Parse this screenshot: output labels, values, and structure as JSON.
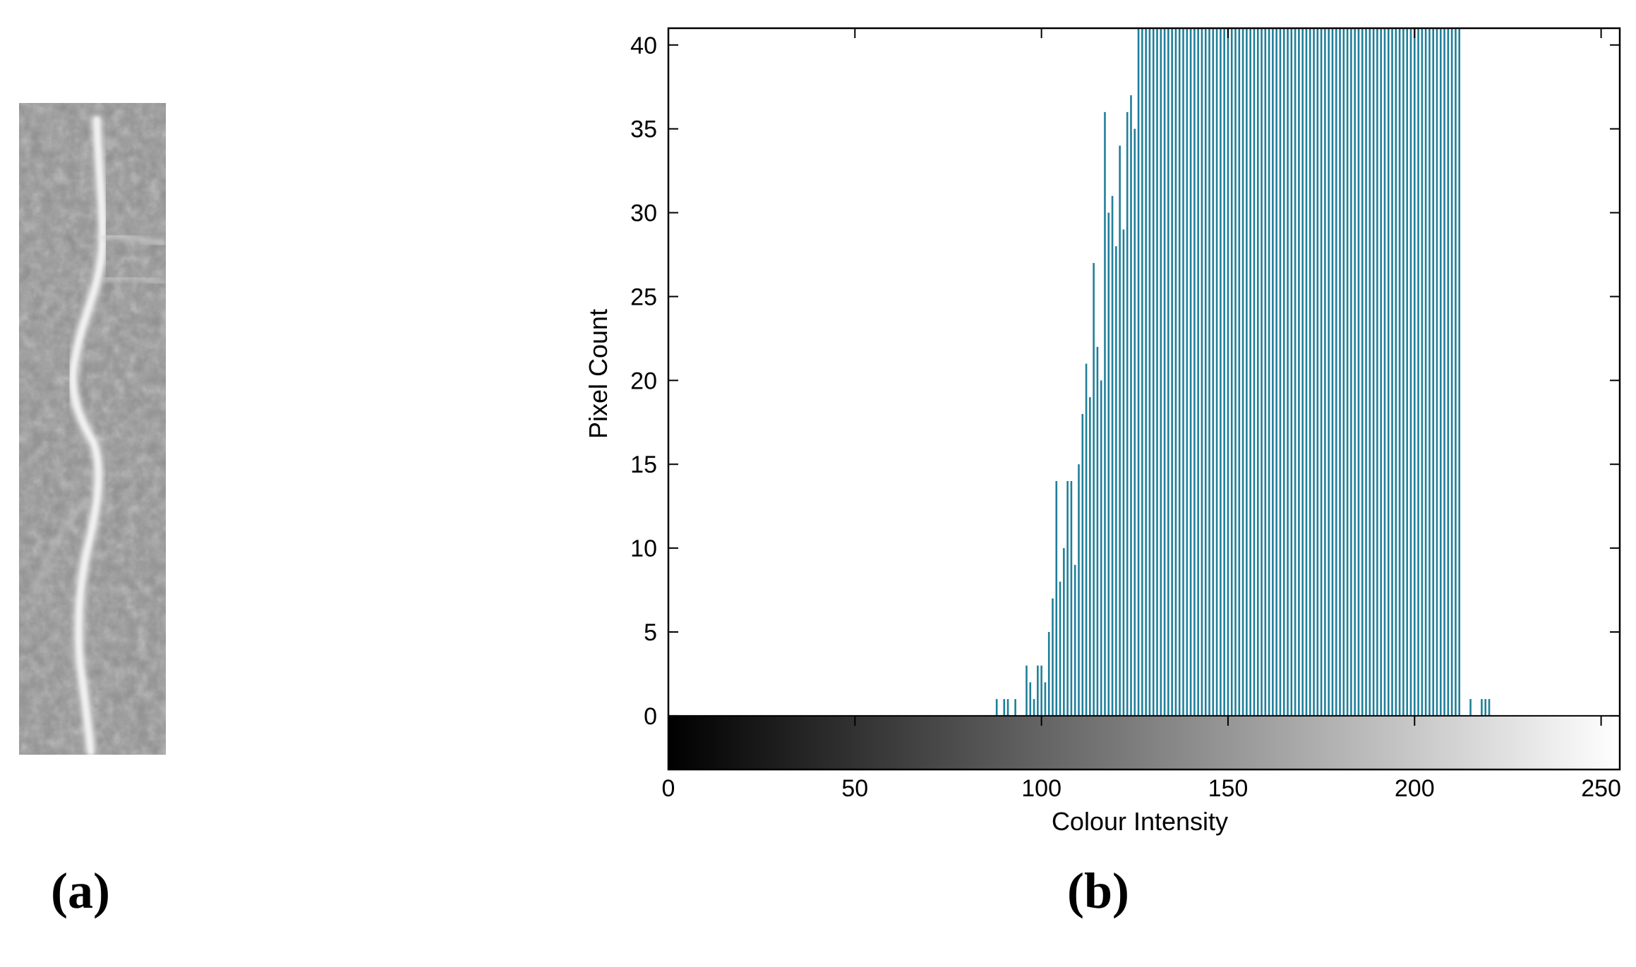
{
  "panels": {
    "a_label": "(a)",
    "b_label": "(b)"
  },
  "chart_data": {
    "type": "bar",
    "xlabel": "Colour Intensity",
    "ylabel": "Pixel Count",
    "xlim": [
      0,
      255
    ],
    "ylim": [
      -3.2,
      41
    ],
    "x_ticks": [
      0,
      50,
      100,
      150,
      200,
      250
    ],
    "y_ticks": [
      0,
      5,
      10,
      15,
      20,
      25,
      30,
      35,
      40
    ],
    "bar_color": "#1f7f9a",
    "colorbar": {
      "range": [
        0,
        255
      ],
      "from_color": "#000000",
      "to_color": "#ffffff"
    },
    "x": [
      88,
      90,
      91,
      93,
      96,
      97,
      98,
      99,
      100,
      101,
      102,
      103,
      104,
      105,
      106,
      107,
      108,
      109,
      110,
      111,
      112,
      113,
      114,
      115,
      116,
      117,
      118,
      119,
      120,
      121,
      122,
      123,
      124,
      125,
      126,
      127,
      128,
      129,
      130,
      131,
      132,
      133,
      134,
      135,
      136,
      137,
      138,
      139,
      140,
      141,
      142,
      143,
      144,
      145,
      146,
      147,
      148,
      149,
      150,
      151,
      152,
      153,
      154,
      155,
      156,
      157,
      158,
      159,
      160,
      161,
      162,
      163,
      164,
      165,
      166,
      167,
      168,
      169,
      170,
      171,
      172,
      173,
      174,
      175,
      176,
      177,
      178,
      179,
      180,
      181,
      182,
      183,
      184,
      185,
      186,
      187,
      188,
      189,
      190,
      191,
      192,
      193,
      194,
      195,
      196,
      197,
      198,
      199,
      200,
      201,
      202,
      203,
      204,
      205,
      206,
      207,
      208,
      209,
      210,
      211,
      212,
      215,
      218,
      219,
      220
    ],
    "values": [
      1,
      1,
      1,
      1,
      3,
      2,
      1,
      3,
      3,
      2,
      5,
      7,
      14,
      8,
      10,
      14,
      14,
      9,
      15,
      18,
      21,
      19,
      27,
      22,
      20,
      36,
      30,
      31,
      28,
      34,
      29,
      36,
      37,
      35,
      41,
      41,
      41,
      41,
      41,
      41,
      41,
      41,
      41,
      41,
      41,
      41,
      41,
      41,
      41,
      41,
      41,
      41,
      41,
      41,
      41,
      41,
      41,
      41,
      41,
      41,
      41,
      41,
      41,
      41,
      41,
      41,
      41,
      41,
      41,
      41,
      41,
      41,
      41,
      41,
      41,
      41,
      41,
      41,
      41,
      41,
      41,
      41,
      41,
      41,
      41,
      41,
      41,
      41,
      41,
      41,
      41,
      41,
      41,
      41,
      41,
      41,
      41,
      41,
      41,
      41,
      41,
      41,
      41,
      41,
      41,
      41,
      41,
      41,
      41,
      41,
      41,
      41,
      41,
      41,
      41,
      41,
      41,
      41,
      41,
      41,
      41,
      1,
      1,
      1,
      1
    ]
  }
}
